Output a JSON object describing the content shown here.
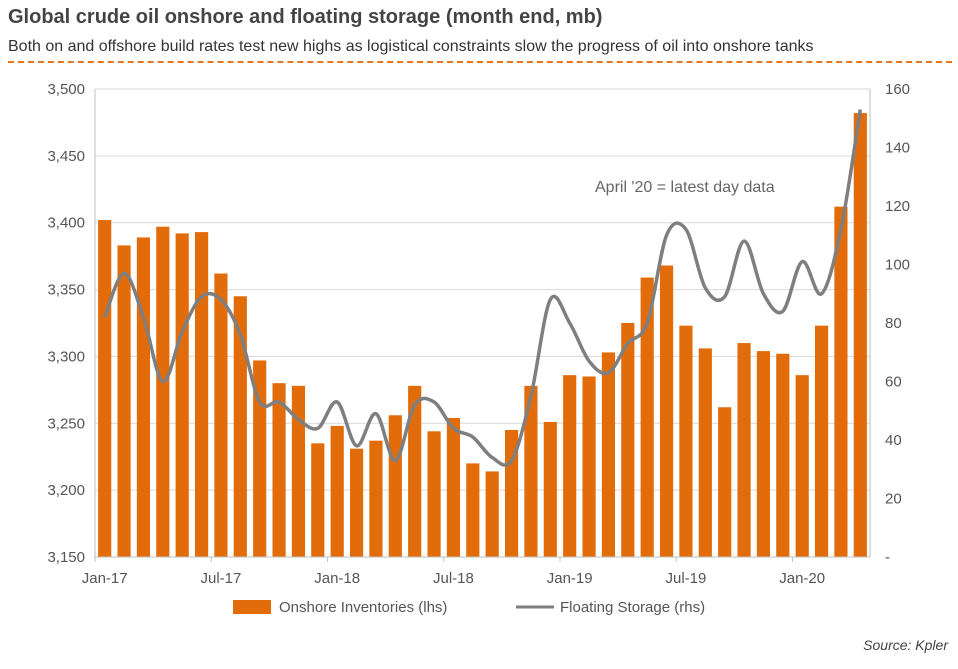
{
  "chart_data": {
    "type": "bar",
    "title": "Global crude oil onshore and floating storage (month end, mb)",
    "subtitle": "Both on and offshore build rates test new highs as logistical constraints slow the progress of oil into onshore tanks",
    "source": "Source: Kpler",
    "annotation": "April '20 = latest day data",
    "x_tick_labels": [
      "Jan-17",
      "Jul-17",
      "Jan-18",
      "Jul-18",
      "Jan-19",
      "Jul-19",
      "Jan-20"
    ],
    "y_left_ticks": [
      "3,150",
      "3,200",
      "3,250",
      "3,300",
      "3,350",
      "3,400",
      "3,450",
      "3,500"
    ],
    "y_right_ticks": [
      "-",
      "20",
      "40",
      "60",
      "80",
      "100",
      "120",
      "140",
      "160"
    ],
    "ylim_left": [
      3150,
      3500
    ],
    "ylim_right": [
      0,
      160
    ],
    "categories": [
      "Jan-17",
      "Feb-17",
      "Mar-17",
      "Apr-17",
      "May-17",
      "Jun-17",
      "Jul-17",
      "Aug-17",
      "Sep-17",
      "Oct-17",
      "Nov-17",
      "Dec-17",
      "Jan-18",
      "Feb-18",
      "Mar-18",
      "Apr-18",
      "May-18",
      "Jun-18",
      "Jul-18",
      "Aug-18",
      "Sep-18",
      "Oct-18",
      "Nov-18",
      "Dec-18",
      "Jan-19",
      "Feb-19",
      "Mar-19",
      "Apr-19",
      "May-19",
      "Jun-19",
      "Jul-19",
      "Aug-19",
      "Sep-19",
      "Oct-19",
      "Nov-19",
      "Dec-19",
      "Jan-20",
      "Feb-20",
      "Mar-20",
      "Apr-20"
    ],
    "series": [
      {
        "name": "Onshore Inventories (lhs)",
        "axis": "left",
        "kind": "bar",
        "color": "#e36c0a",
        "values": [
          3402,
          3383,
          3389,
          3397,
          3392,
          3393,
          3362,
          3345,
          3297,
          3280,
          3278,
          3235,
          3248,
          3231,
          3237,
          3256,
          3278,
          3244,
          3254,
          3220,
          3214,
          3245,
          3278,
          3251,
          3286,
          3285,
          3303,
          3325,
          3359,
          3368,
          3323,
          3306,
          3262,
          3310,
          3304,
          3302,
          3286,
          3323,
          3412,
          3482
        ]
      },
      {
        "name": "Floating Storage (rhs)",
        "axis": "right",
        "kind": "line",
        "color": "#7f7f7f",
        "values": [
          82,
          97,
          82,
          60,
          77,
          89,
          88,
          76,
          53,
          53,
          47,
          44,
          53,
          38,
          49,
          33,
          52,
          53,
          44,
          41,
          34,
          33,
          55,
          88,
          80,
          67,
          63,
          73,
          80,
          110,
          112,
          92,
          89,
          108,
          90,
          84,
          101,
          90,
          112,
          153
        ]
      }
    ],
    "legend": [
      "Onshore Inventories (lhs)",
      "Floating Storage (rhs)"
    ]
  }
}
